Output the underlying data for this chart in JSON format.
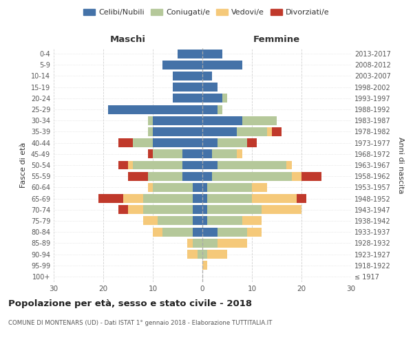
{
  "age_groups": [
    "100+",
    "95-99",
    "90-94",
    "85-89",
    "80-84",
    "75-79",
    "70-74",
    "65-69",
    "60-64",
    "55-59",
    "50-54",
    "45-49",
    "40-44",
    "35-39",
    "30-34",
    "25-29",
    "20-24",
    "15-19",
    "10-14",
    "5-9",
    "0-4"
  ],
  "birth_years": [
    "≤ 1917",
    "1918-1922",
    "1923-1927",
    "1928-1932",
    "1933-1937",
    "1938-1942",
    "1943-1947",
    "1948-1952",
    "1953-1957",
    "1958-1962",
    "1963-1967",
    "1968-1972",
    "1973-1977",
    "1978-1982",
    "1983-1987",
    "1988-1992",
    "1993-1997",
    "1998-2002",
    "2003-2007",
    "2008-2012",
    "2013-2017"
  ],
  "maschi": {
    "celibi": [
      0,
      0,
      0,
      0,
      2,
      2,
      2,
      2,
      2,
      4,
      4,
      4,
      10,
      10,
      10,
      19,
      6,
      6,
      6,
      8,
      5
    ],
    "coniugati": [
      0,
      0,
      1,
      2,
      6,
      7,
      10,
      10,
      8,
      7,
      10,
      6,
      4,
      1,
      1,
      0,
      0,
      0,
      0,
      0,
      0
    ],
    "vedovi": [
      0,
      0,
      2,
      1,
      2,
      3,
      3,
      4,
      1,
      0,
      1,
      0,
      0,
      0,
      0,
      0,
      0,
      0,
      0,
      0,
      0
    ],
    "divorziati": [
      0,
      0,
      0,
      0,
      0,
      0,
      2,
      5,
      0,
      4,
      2,
      1,
      3,
      0,
      0,
      0,
      0,
      0,
      0,
      0,
      0
    ]
  },
  "femmine": {
    "nubili": [
      0,
      0,
      0,
      0,
      3,
      1,
      1,
      1,
      1,
      2,
      3,
      2,
      3,
      7,
      8,
      3,
      4,
      3,
      2,
      8,
      4
    ],
    "coniugate": [
      0,
      0,
      1,
      3,
      6,
      7,
      11,
      9,
      9,
      16,
      14,
      5,
      6,
      6,
      7,
      1,
      1,
      0,
      0,
      0,
      0
    ],
    "vedove": [
      0,
      1,
      4,
      6,
      3,
      4,
      8,
      9,
      3,
      2,
      1,
      1,
      0,
      1,
      0,
      0,
      0,
      0,
      0,
      0,
      0
    ],
    "divorziate": [
      0,
      0,
      0,
      0,
      0,
      0,
      0,
      2,
      0,
      4,
      0,
      0,
      2,
      2,
      0,
      0,
      0,
      0,
      0,
      0,
      0
    ]
  },
  "colors": {
    "celibi": "#4472a8",
    "coniugati": "#b5c89a",
    "vedovi": "#f5c97a",
    "divorziati": "#c0392b"
  },
  "title": "Popolazione per età, sesso e stato civile - 2018",
  "subtitle": "COMUNE DI MONTENARS (UD) - Dati ISTAT 1° gennaio 2018 - Elaborazione TUTTITALIA.IT",
  "xlabel_maschi": "Maschi",
  "xlabel_femmine": "Femmine",
  "ylabel_left": "Fasce di età",
  "ylabel_right": "Anni di nascita",
  "xlim": 30,
  "bg_color": "#ffffff",
  "grid_color": "#cccccc"
}
